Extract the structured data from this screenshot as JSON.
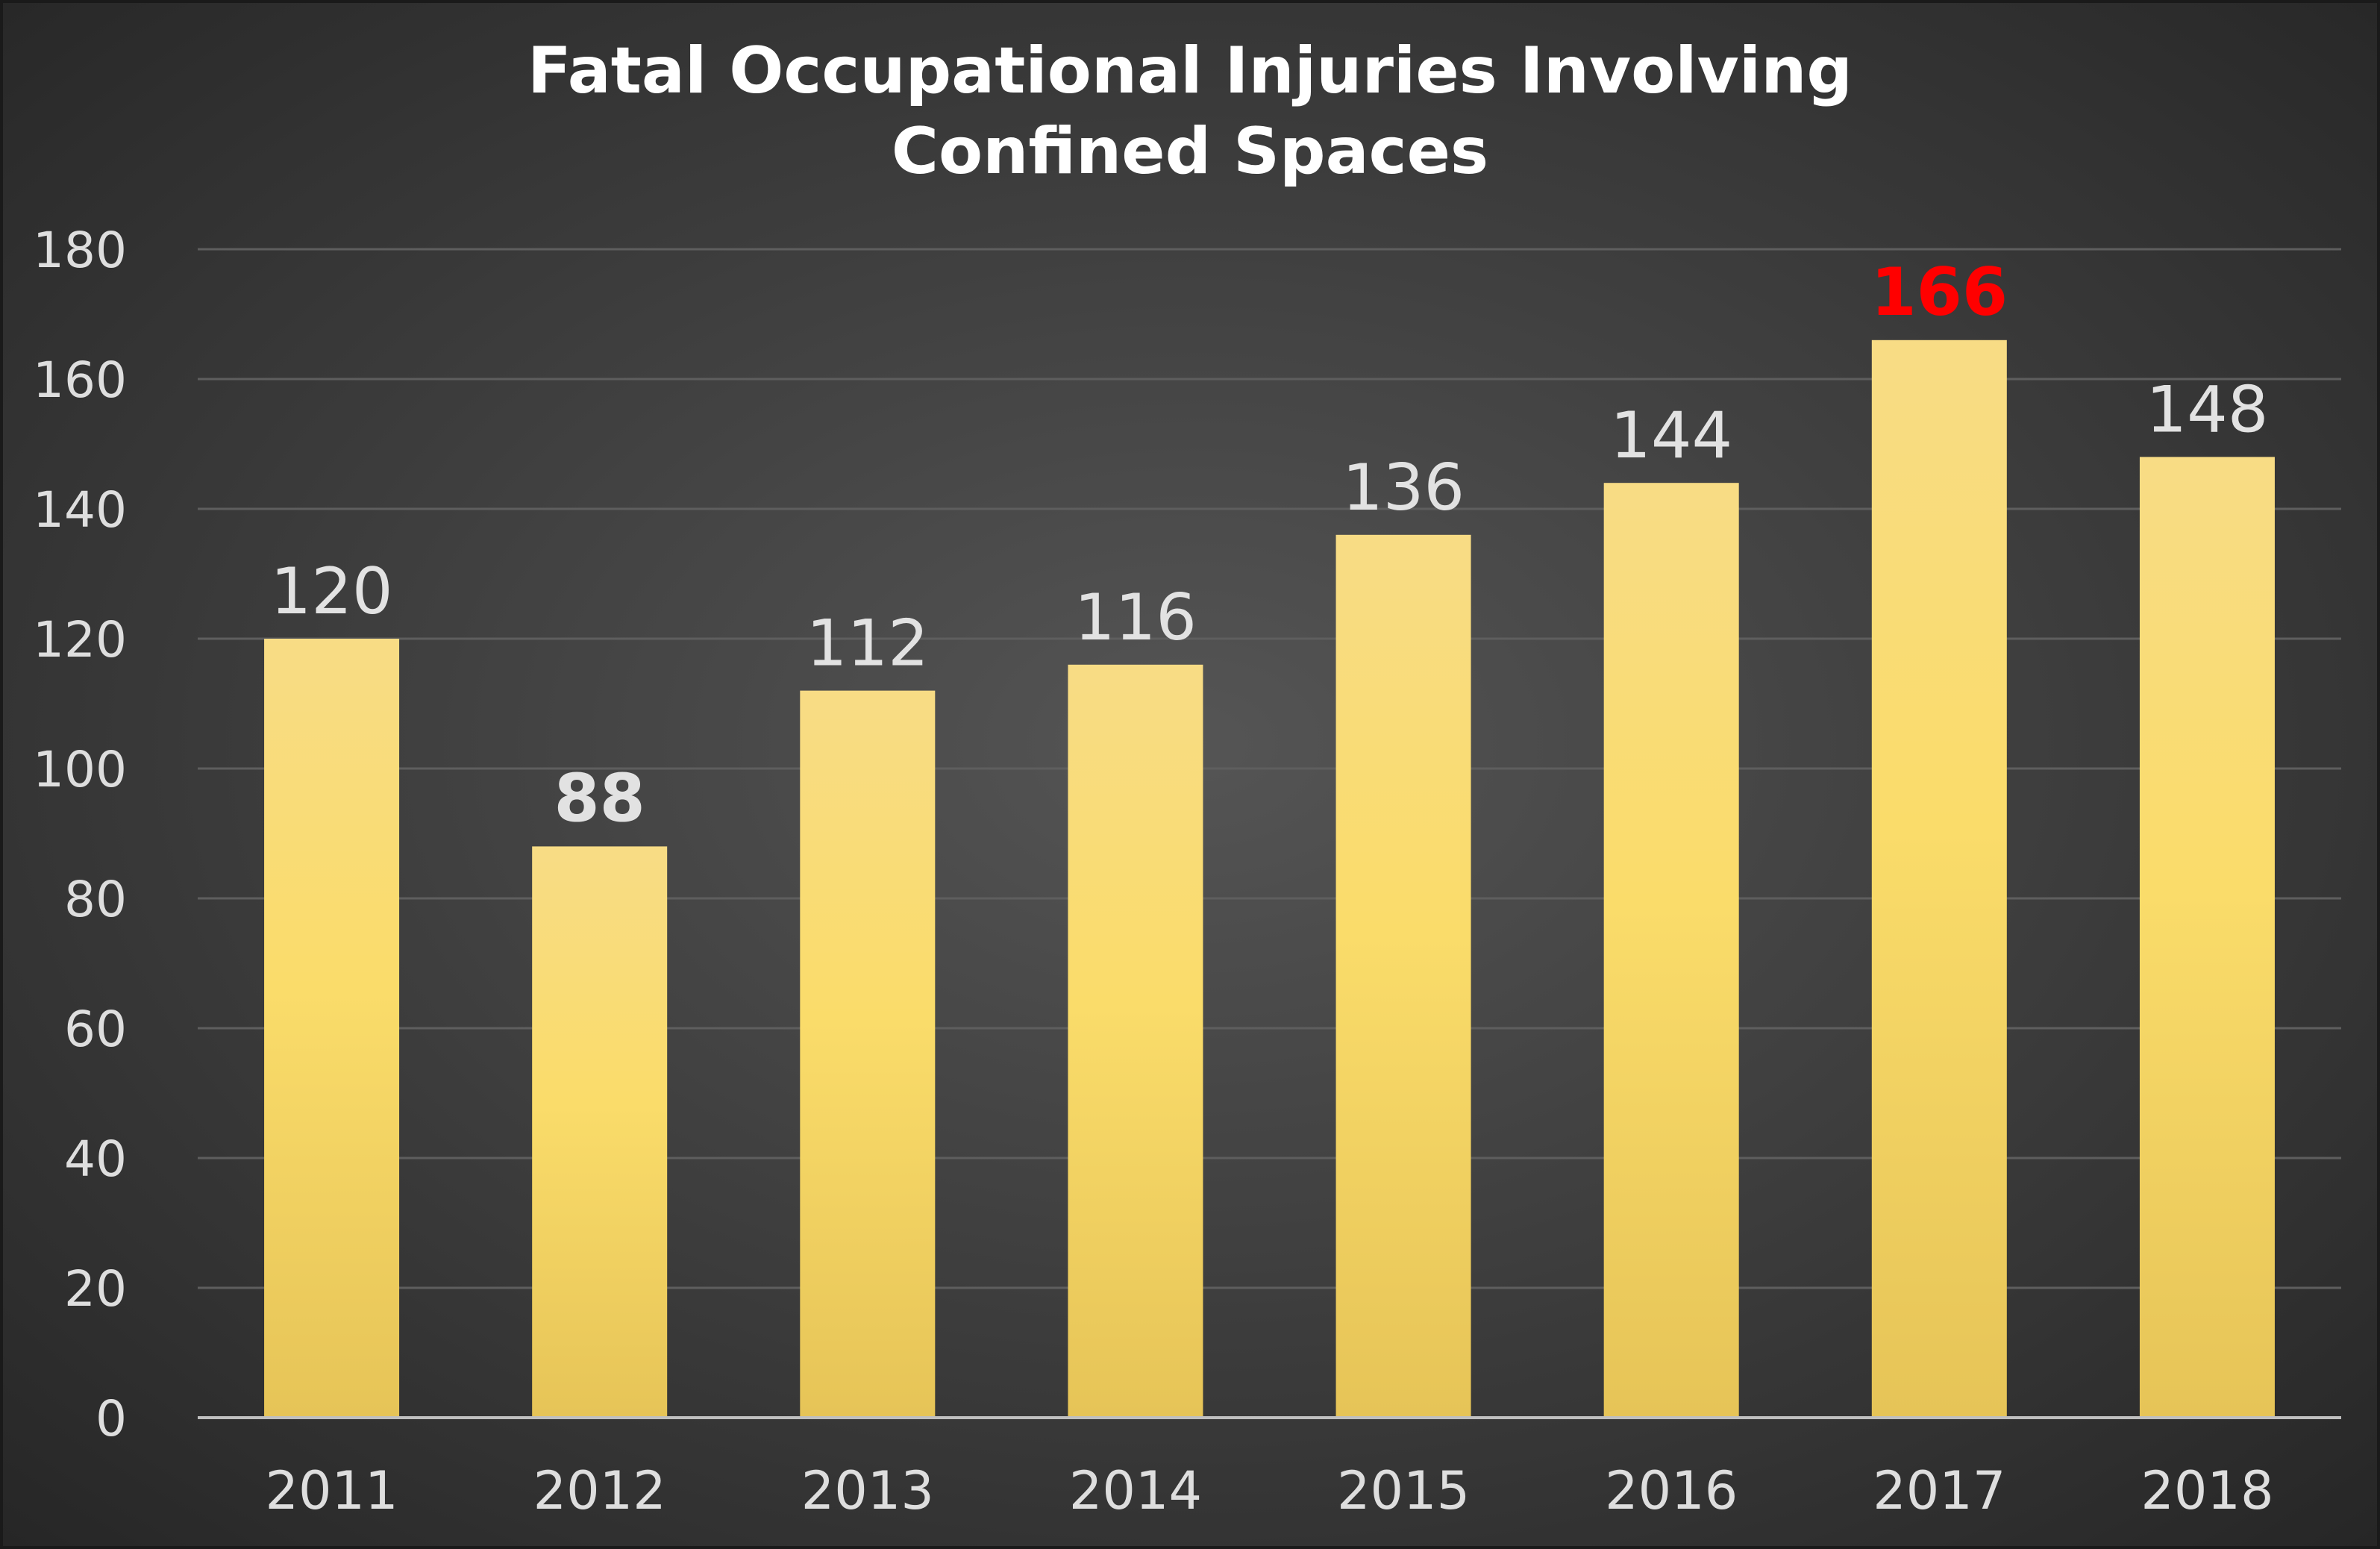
{
  "chart_data": {
    "type": "bar",
    "title_lines": [
      "Fatal Occupational Injuries Involving",
      "Confined Spaces"
    ],
    "categories": [
      "2011",
      "2012",
      "2013",
      "2014",
      "2015",
      "2016",
      "2017",
      "2018"
    ],
    "values": [
      120,
      88,
      112,
      116,
      136,
      144,
      166,
      148
    ],
    "data_labels": [
      "120",
      "88",
      "112",
      "116",
      "136",
      "144",
      "166",
      "148"
    ],
    "highlight": {
      "min_category": "2012",
      "max_category": "2017",
      "max_color": "#ff0000"
    },
    "ylim": [
      0,
      180
    ],
    "yticks": [
      0,
      20,
      40,
      60,
      80,
      100,
      120,
      140,
      160,
      180
    ],
    "ytick_labels": [
      "0",
      "20",
      "40",
      "60",
      "80",
      "100",
      "120",
      "140",
      "160",
      "180"
    ],
    "grid": true,
    "legend": "none",
    "colors": {
      "background_center": "#555555",
      "background_edge": "#262626",
      "bar_top": "#f8dc85",
      "bar_mid": "#fadc6a",
      "bar_bottom": "#e6c457",
      "grid": "#5e5e5e",
      "axis": "#bfbfbf",
      "label": "#e2e2e2"
    }
  }
}
